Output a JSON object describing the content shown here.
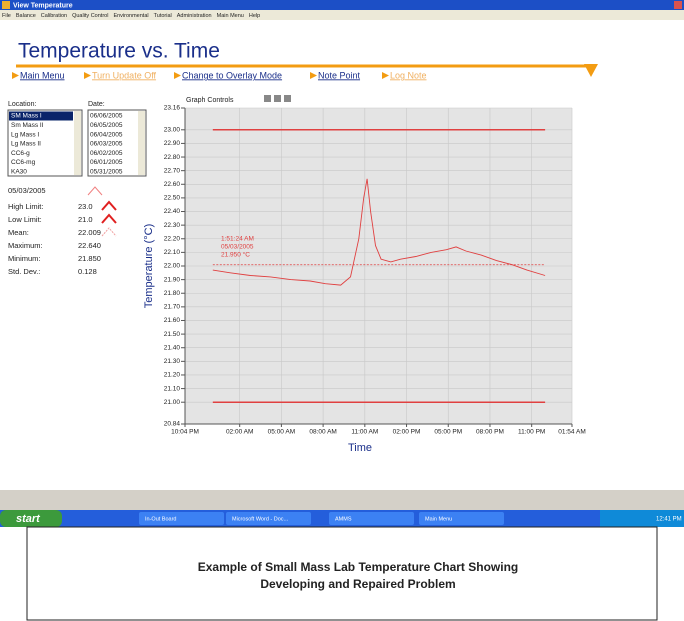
{
  "window": {
    "title": "View Temperature",
    "menu": [
      "File",
      "Balance",
      "Calibration",
      "Quality Control",
      "Environmental",
      "Tutorial",
      "Administration",
      "Main Menu",
      "Help"
    ]
  },
  "header": {
    "title": "Temperature vs. Time",
    "links": [
      {
        "text": "Main Menu",
        "enabled": true
      },
      {
        "text": "Turn Update Off",
        "enabled": false
      },
      {
        "text": "Change to Overlay Mode",
        "enabled": true
      },
      {
        "text": "Note Point",
        "enabled": true
      },
      {
        "text": "Log Note",
        "enabled": false
      }
    ]
  },
  "location": {
    "label": "Location:",
    "items": [
      "SM Mass I",
      "Sm Mass II",
      "Lg Mass I",
      "Lg Mass II",
      "CC6-g",
      "CC6-mg",
      "KA30"
    ],
    "selected": 0
  },
  "date": {
    "label": "Date:",
    "items": [
      "06/06/2005",
      "06/05/2005",
      "06/04/2005",
      "06/03/2005",
      "06/02/2005",
      "06/01/2005",
      "05/31/2005"
    ]
  },
  "stats": {
    "date": "05/03/2005",
    "items": [
      {
        "label": "High Limit:",
        "value": 23,
        "value_label": "23.0"
      },
      {
        "label": "Low Limit:",
        "value": 21,
        "value_label": "21.0"
      },
      {
        "label": "Mean:",
        "value": 22.009
      },
      {
        "label": "Maximum:",
        "value": 22.64,
        "value_label": "22.640"
      },
      {
        "label": "Minimum:",
        "value": 21.85,
        "value_label": "21.850"
      },
      {
        "label": "Std. Dev.:",
        "value": 0.128
      }
    ]
  },
  "graph": {
    "type": "line",
    "controls_label": "Graph Controls",
    "ylabel": "Temperature (°C)",
    "xlabel": "Time",
    "color": "#e04040",
    "x": [
      2.0,
      3.25,
      4.7,
      6.15,
      7.6,
      9.0,
      10.1,
      11.2,
      11.9,
      12.5,
      12.85,
      13.1,
      13.35,
      13.7,
      14.1,
      14.8,
      15.5,
      16.6,
      17.7,
      18.8,
      19.5,
      20.2,
      21.3,
      22.4,
      23.5,
      24.6,
      25.9
    ],
    "values": [
      21.97,
      21.95,
      21.93,
      21.92,
      21.9,
      21.89,
      21.87,
      21.86,
      21.92,
      22.2,
      22.5,
      22.64,
      22.4,
      22.15,
      22.05,
      22.03,
      22.05,
      22.07,
      22.1,
      22.12,
      22.14,
      22.11,
      22.08,
      22.04,
      22.01,
      21.97,
      21.93
    ],
    "xlim": [
      0,
      27.833
    ],
    "xticks": [
      {
        "value": 0,
        "label": "10:04 PM"
      },
      {
        "value": 3.933,
        "label": "02:00 AM"
      },
      {
        "value": 6.933,
        "label": "05:00 AM"
      },
      {
        "value": 9.933,
        "label": "08:00 AM"
      },
      {
        "value": 12.933,
        "label": "11:00 AM"
      },
      {
        "value": 15.933,
        "label": "02:00 PM"
      },
      {
        "value": 18.933,
        "label": "05:00 PM"
      },
      {
        "value": 21.933,
        "label": "08:00 PM"
      },
      {
        "value": 24.933,
        "label": "11:00 PM"
      },
      {
        "value": 27.833,
        "label": "01:54 AM"
      }
    ],
    "ylim": [
      20.84,
      23.16
    ],
    "yticks": [
      23.16,
      {
        "value": 23,
        "label": "23.00"
      },
      {
        "value": 22.9,
        "label": "22.90"
      },
      {
        "value": 22.8,
        "label": "22.80"
      },
      {
        "value": 22.7,
        "label": "22.70"
      },
      {
        "value": 22.6,
        "label": "22.60"
      },
      {
        "value": 22.5,
        "label": "22.50"
      },
      {
        "value": 22.4,
        "label": "22.40"
      },
      {
        "value": 22.3,
        "label": "22.30"
      },
      {
        "value": 22.2,
        "label": "22.20"
      },
      {
        "value": 22.1,
        "label": "22.10"
      },
      {
        "value": 22,
        "label": "22.00"
      },
      {
        "value": 21.9,
        "label": "21.90"
      },
      {
        "value": 21.8,
        "label": "21.80"
      },
      {
        "value": 21.7,
        "label": "21.70"
      },
      {
        "value": 21.6,
        "label": "21.60"
      },
      {
        "value": 21.5,
        "label": "21.50"
      },
      {
        "value": 21.4,
        "label": "21.40"
      },
      {
        "value": 21.3,
        "label": "21.30"
      },
      {
        "value": 21.2,
        "label": "21.20"
      },
      {
        "value": 21.1,
        "label": "21.10"
      },
      {
        "value": 21,
        "label": "21.00"
      },
      20.84
    ],
    "grid": true,
    "annotation": [
      "1:51:24 AM",
      "05/03/2005",
      "21.950 °C"
    ]
  },
  "taskbar": {
    "start": "start",
    "items": [
      "In-Out Board",
      "Microsoft Word - Doc...",
      "AMMS",
      "Main Menu"
    ],
    "clock": "12:41 PM"
  },
  "caption": [
    "Example of Small Mass Lab Temperature Chart Showing",
    "Developing and Repaired Problem"
  ]
}
